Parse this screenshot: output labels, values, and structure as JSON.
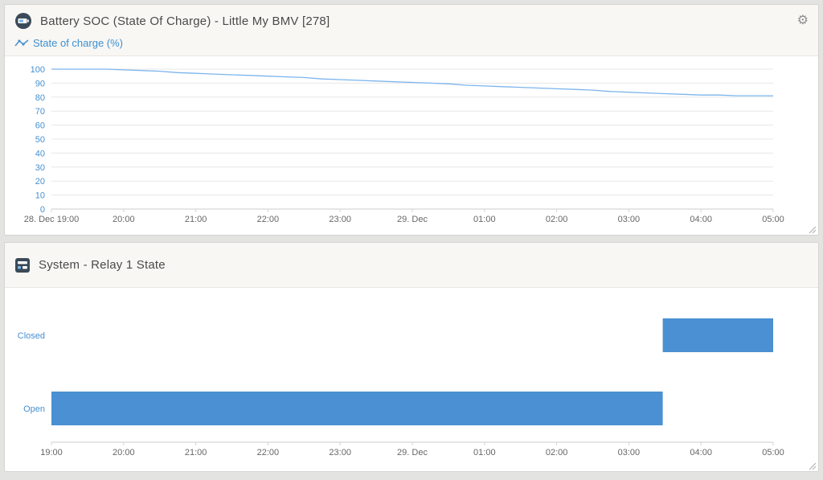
{
  "colors": {
    "accent_blue": "#4790d0",
    "line_blue": "#7cb5ec",
    "bar_blue": "#4a90d2",
    "axis_label_gray": "#666666",
    "grid_gray": "#e7e7e7",
    "axis_line_gray": "#cccccc",
    "header_bg": "#f8f7f4",
    "icon_navy": "#3a4a58"
  },
  "icons": {
    "gear": "⚙"
  },
  "chart_data": [
    {
      "type": "line",
      "title": "Battery SOC (State Of Charge) - Little My BMV [278]",
      "legend_position": "top-left",
      "grid": true,
      "xlim": [
        0,
        10
      ],
      "ylim": [
        0,
        100
      ],
      "y_ticks": [
        0,
        10,
        20,
        30,
        40,
        50,
        60,
        70,
        80,
        90,
        100
      ],
      "x_tick_positions": [
        0,
        1,
        2,
        3,
        4,
        5,
        6,
        7,
        8,
        9,
        10
      ],
      "x_tick_labels": [
        "28. Dec 19:00",
        "20:00",
        "21:00",
        "22:00",
        "23:00",
        "29. Dec",
        "01:00",
        "02:00",
        "03:00",
        "04:00",
        "05:00"
      ],
      "series": [
        {
          "name": "State of charge (%)",
          "color": "#7cb5ec",
          "x_start": 0,
          "x_step": 0.25,
          "values": [
            100,
            100,
            100,
            100,
            99.5,
            99,
            98.5,
            97.5,
            97,
            96.5,
            96,
            95.5,
            95,
            94.5,
            94,
            93,
            92.5,
            92,
            91.5,
            91,
            90.5,
            90,
            89.5,
            88.5,
            88,
            87.5,
            87,
            86.5,
            86,
            85.5,
            85,
            84,
            83.5,
            83,
            82.5,
            82,
            81.5,
            81.5,
            81,
            81,
            81
          ]
        }
      ]
    },
    {
      "type": "timeline-bar",
      "title": "System - Relay 1 State",
      "bar_color": "#4a90d2",
      "xlim": [
        0,
        10
      ],
      "x_tick_positions": [
        0,
        1,
        2,
        3,
        4,
        5,
        6,
        7,
        8,
        9,
        10
      ],
      "x_tick_labels": [
        "19:00",
        "20:00",
        "21:00",
        "22:00",
        "23:00",
        "29. Dec",
        "01:00",
        "02:00",
        "03:00",
        "04:00",
        "05:00"
      ],
      "categories": [
        "Closed",
        "Open"
      ],
      "rows": [
        {
          "label": "Closed",
          "segments": [
            [
              8.47,
              10
            ]
          ]
        },
        {
          "label": "Open",
          "segments": [
            [
              0,
              8.47
            ]
          ]
        }
      ]
    }
  ]
}
